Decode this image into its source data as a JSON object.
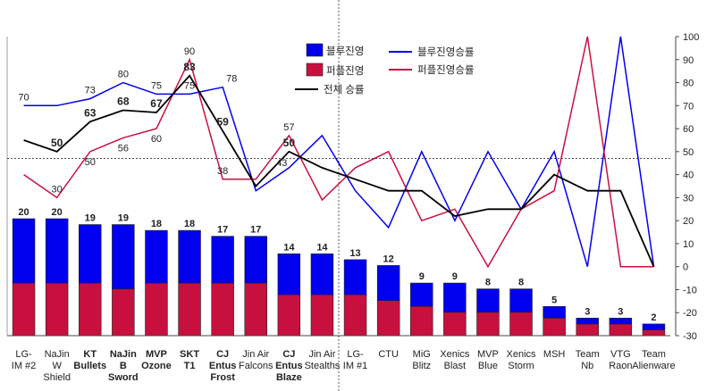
{
  "chart_data": {
    "type": "bar+line",
    "categories": [
      {
        "lines": [
          "LG-",
          "IM #2"
        ],
        "bold": false
      },
      {
        "lines": [
          "NaJin",
          "W",
          "Shield"
        ],
        "bold": false
      },
      {
        "lines": [
          "KT",
          "Bullets"
        ],
        "bold": true
      },
      {
        "lines": [
          "NaJin",
          "B",
          "Sword"
        ],
        "bold": true
      },
      {
        "lines": [
          "MVP",
          "Ozone"
        ],
        "bold": true
      },
      {
        "lines": [
          "SKT",
          "T1"
        ],
        "bold": true
      },
      {
        "lines": [
          "CJ",
          "Entus",
          "Frost"
        ],
        "bold": true
      },
      {
        "lines": [
          "Jin Air",
          "Falcons"
        ],
        "bold": false
      },
      {
        "lines": [
          "CJ",
          "Entus",
          "Blaze"
        ],
        "bold": true
      },
      {
        "lines": [
          "Jin Air",
          "Stealths"
        ],
        "bold": false
      },
      {
        "lines": [
          "LG-",
          "IM #1"
        ],
        "bold": false
      },
      {
        "lines": [
          "CTU"
        ],
        "bold": false
      },
      {
        "lines": [
          "MiG",
          "Blitz"
        ],
        "bold": false
      },
      {
        "lines": [
          "Xenics",
          "Blast"
        ],
        "bold": false
      },
      {
        "lines": [
          "MVP",
          "Blue"
        ],
        "bold": false
      },
      {
        "lines": [
          "Xenics",
          "Storm"
        ],
        "bold": false
      },
      {
        "lines": [
          "MSH"
        ],
        "bold": false
      },
      {
        "lines": [
          "Team",
          "Nb"
        ],
        "bold": false
      },
      {
        "lines": [
          "VTG",
          "Raon"
        ],
        "bold": false
      },
      {
        "lines": [
          "Team",
          "Alienware"
        ],
        "bold": false
      }
    ],
    "bar_totals": [
      20,
      20,
      19,
      19,
      18,
      18,
      17,
      17,
      14,
      14,
      13,
      12,
      9,
      9,
      8,
      8,
      5,
      3,
      3,
      2
    ],
    "series": [
      {
        "name": "블루진영",
        "kind": "bar",
        "color": "#0000ee",
        "values": [
          11,
          11,
          10,
          11,
          9,
          9,
          8,
          8,
          7,
          7,
          6,
          6,
          4,
          5,
          4,
          4,
          2,
          1,
          1,
          1
        ]
      },
      {
        "name": "퍼플진영",
        "kind": "bar",
        "color": "#c8103e",
        "values": [
          9,
          9,
          9,
          8,
          9,
          9,
          9,
          9,
          7,
          7,
          7,
          6,
          5,
          4,
          4,
          4,
          3,
          2,
          2,
          1
        ]
      },
      {
        "name": "블루진영승률",
        "kind": "line",
        "color": "#0000ee",
        "values": [
          70,
          70,
          73,
          80,
          75,
          75,
          78,
          33,
          43,
          57,
          33,
          17,
          50,
          20,
          50,
          25,
          50,
          0,
          100,
          0
        ]
      },
      {
        "name": "퍼플진영승률",
        "kind": "line",
        "color": "#c8103e",
        "values": [
          40,
          30,
          50,
          56,
          60,
          90,
          38,
          38,
          57,
          29,
          43,
          50,
          20,
          25,
          0,
          25,
          33,
          100,
          0,
          0
        ]
      },
      {
        "name": "전체 승률",
        "kind": "line",
        "color": "#000000",
        "values": [
          55,
          50,
          63,
          68,
          67,
          83,
          59,
          35,
          50,
          43,
          38,
          33,
          33,
          22,
          25,
          25,
          40,
          33,
          33,
          0
        ]
      }
    ],
    "point_labels": [
      {
        "series": "블루진영승률",
        "i": 0,
        "text": "70",
        "bold": false,
        "pos": "above"
      },
      {
        "series": "블루진영승률",
        "i": 2,
        "text": "73",
        "bold": false,
        "pos": "above"
      },
      {
        "series": "블루진영승률",
        "i": 3,
        "text": "80",
        "bold": false,
        "pos": "above"
      },
      {
        "series": "블루진영승률",
        "i": 4,
        "text": "75",
        "bold": false,
        "pos": "above"
      },
      {
        "series": "블루진영승률",
        "i": 5,
        "text": "75",
        "bold": false,
        "pos": "above"
      },
      {
        "series": "블루진영승률",
        "i": 6,
        "text": "78",
        "bold": false,
        "pos": "right-above"
      },
      {
        "series": "퍼플진영승률",
        "i": 1,
        "text": "30",
        "bold": false,
        "pos": "above"
      },
      {
        "series": "퍼플진영승률",
        "i": 2,
        "text": "50",
        "bold": false,
        "pos": "below"
      },
      {
        "series": "퍼플진영승률",
        "i": 3,
        "text": "56",
        "bold": false,
        "pos": "below"
      },
      {
        "series": "퍼플진영승률",
        "i": 4,
        "text": "60",
        "bold": false,
        "pos": "below"
      },
      {
        "series": "퍼플진영승률",
        "i": 5,
        "text": "90",
        "bold": false,
        "pos": "above"
      },
      {
        "series": "퍼플진영승률",
        "i": 6,
        "text": "38",
        "bold": false,
        "pos": "above"
      },
      {
        "series": "퍼플진영승률",
        "i": 8,
        "text": "57",
        "bold": false,
        "pos": "above"
      },
      {
        "series": "블루진영승률",
        "i": 8,
        "text": "43",
        "bold": false,
        "pos": "left-above"
      },
      {
        "series": "전체 승률",
        "i": 1,
        "text": "50",
        "bold": true,
        "pos": "above"
      },
      {
        "series": "전체 승률",
        "i": 2,
        "text": "63",
        "bold": true,
        "pos": "above"
      },
      {
        "series": "전체 승률",
        "i": 3,
        "text": "68",
        "bold": true,
        "pos": "above"
      },
      {
        "series": "전체 승률",
        "i": 4,
        "text": "67",
        "bold": true,
        "pos": "above"
      },
      {
        "series": "전체 승률",
        "i": 5,
        "text": "83",
        "bold": true,
        "pos": "above"
      },
      {
        "series": "전체 승률",
        "i": 6,
        "text": "59",
        "bold": true,
        "pos": "above"
      },
      {
        "series": "전체 승률",
        "i": 8,
        "text": "50",
        "bold": true,
        "pos": "above"
      }
    ],
    "y_right": {
      "min": -30,
      "max": 100,
      "ticks": [
        -30,
        -20,
        -10,
        0,
        10,
        20,
        30,
        40,
        50,
        60,
        70,
        80,
        90,
        100
      ]
    },
    "reference_line": {
      "y": 47,
      "style": "dotted"
    },
    "divider_after_category": 9,
    "legend": {
      "placement": "top-center"
    },
    "grid": false
  }
}
